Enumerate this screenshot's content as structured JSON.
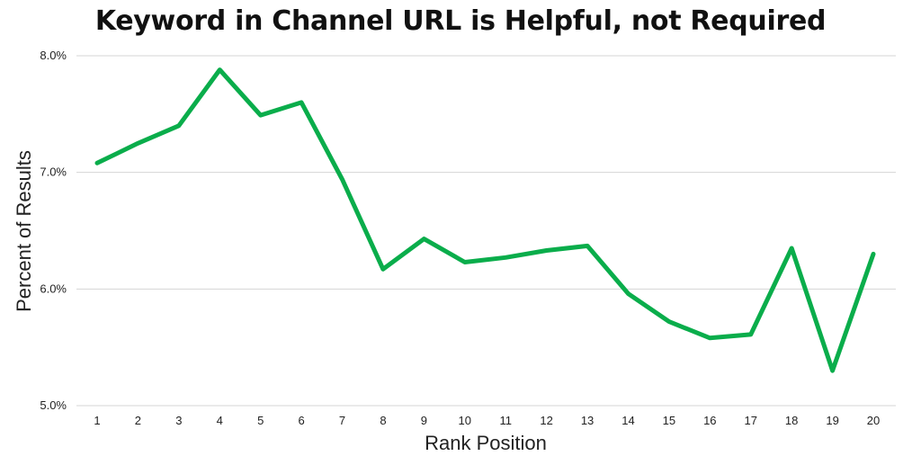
{
  "chart_data": {
    "type": "line",
    "title": "Keyword in Channel URL is Helpful, not Required",
    "xlabel": "Rank Position",
    "ylabel": "Percent of Results",
    "categories": [
      "1",
      "2",
      "3",
      "4",
      "5",
      "6",
      "7",
      "8",
      "9",
      "10",
      "11",
      "12",
      "13",
      "14",
      "15",
      "16",
      "17",
      "18",
      "19",
      "20"
    ],
    "series": [
      {
        "values": [
          7.08,
          7.25,
          7.4,
          7.88,
          7.49,
          7.6,
          6.94,
          6.17,
          6.43,
          6.23,
          6.27,
          6.33,
          6.37,
          5.96,
          5.72,
          5.58,
          5.61,
          6.35,
          5.3,
          6.3
        ],
        "color": "#0aad4b"
      }
    ],
    "ylim": [
      5.0,
      8.0
    ],
    "yticks": [
      "5.0%",
      "6.0%",
      "7.0%",
      "8.0%"
    ],
    "ytick_values": [
      5.0,
      6.0,
      7.0,
      8.0
    ],
    "grid": true,
    "gridline_color": "#d4d4d4"
  }
}
